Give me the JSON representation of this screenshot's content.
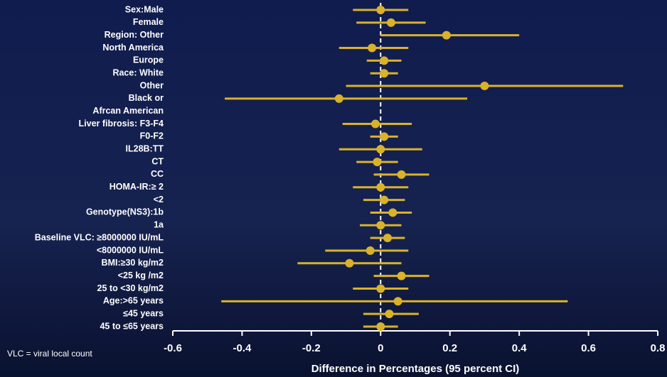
{
  "chart_data": {
    "type": "forest",
    "xlabel": "Difference in Percentages (95 percent CI)",
    "footnote": "VLC = viral local count",
    "color": "#d9b22a",
    "categories": [
      "Sex:Male",
      "Female",
      "Region: Other",
      "North America",
      "Europe",
      "Race: White",
      "Other",
      "Black or",
      "Afrcan American",
      "Liver fibrosis: F3-F4",
      "F0-F2",
      "IL28B:TT",
      "CT",
      "CC",
      "HOMA-IR:≥ 2",
      "<2",
      "Genotype(NS3):1b",
      "1a",
      "Baseline VLC: ≥8000000 IU/mL",
      "<8000000 IU/mL",
      "BMI:≥30 kg/m2",
      "<25 kg /m2",
      "25 to <30 kg/m2",
      "Age:>65 years",
      "≤45 years",
      "45 to ≤65 years"
    ],
    "values": [
      0,
      0.03,
      0.19,
      -0.025,
      0.01,
      0.01,
      0.3,
      -0.12,
      null,
      -0.015,
      0.01,
      0,
      -0.01,
      0.06,
      0,
      0.01,
      0.035,
      0,
      0.02,
      -0.03,
      -0.09,
      0.06,
      0,
      0.05,
      0.025,
      0
    ],
    "ci_low": [
      -0.08,
      -0.07,
      0,
      -0.12,
      -0.04,
      -0.03,
      -0.1,
      -0.45,
      null,
      -0.11,
      -0.03,
      -0.12,
      -0.07,
      -0.02,
      -0.08,
      -0.05,
      -0.03,
      -0.06,
      -0.03,
      -0.16,
      -0.24,
      -0.02,
      -0.08,
      -0.46,
      -0.05,
      -0.05
    ],
    "ci_high": [
      0.08,
      0.13,
      0.4,
      0.08,
      0.06,
      0.05,
      0.7,
      0.25,
      null,
      0.09,
      0.05,
      0.12,
      0.05,
      0.14,
      0.08,
      0.07,
      0.09,
      0.06,
      0.07,
      0.08,
      0.06,
      0.14,
      0.08,
      0.54,
      0.11,
      0.05
    ],
    "xlim": [
      -0.6,
      0.8
    ],
    "xticks": [
      {
        "value": -0.6,
        "label": "-0.6"
      },
      {
        "value": -0.4,
        "label": "-0.4"
      },
      {
        "value": -0.2,
        "label": "-0.2"
      },
      0,
      {
        "value": 0.2,
        "label": "0.2"
      },
      {
        "value": 0.4,
        "label": "0.4"
      },
      {
        "value": 0.6,
        "label": "0.6"
      },
      {
        "value": 0.8,
        "label": "0.8"
      }
    ],
    "reference_line": 0
  }
}
